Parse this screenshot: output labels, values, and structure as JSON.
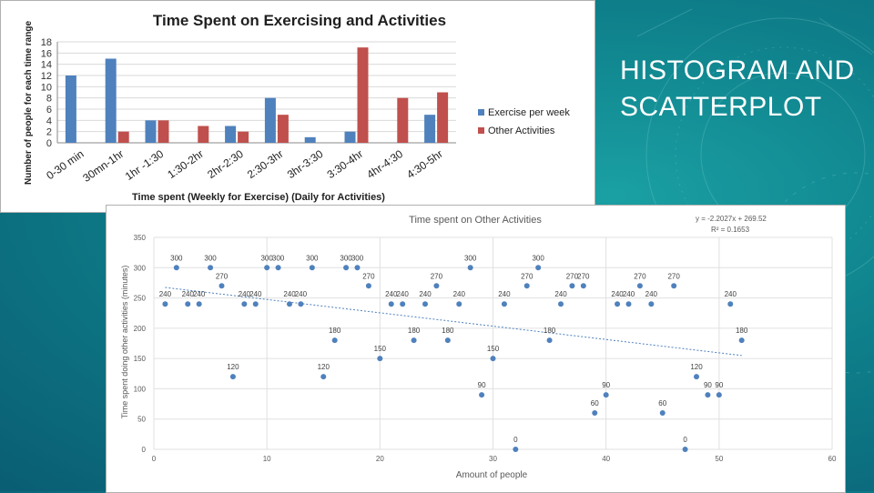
{
  "slide": {
    "title_line1": "HISTOGRAM AND",
    "title_line2": "SCATTERPLOT"
  },
  "chart_data": [
    {
      "type": "bar",
      "title": "Time Spent on Exercising and Activities",
      "xlabel": "Time spent (Weekly for Exercise) (Daily for Activities)",
      "ylabel": "Number of people for each time range",
      "categories": [
        "0-30 min",
        "30mn-1hr",
        "1hr -1:30",
        "1:30-2hr",
        "2hr-2:30",
        "2:30-3hr",
        "3hr-3:30",
        "3:30-4hr",
        "4hr-4:30",
        "4:30-5hr"
      ],
      "series": [
        {
          "name": "Exercise per week",
          "color": "#4f81bd",
          "values": [
            12,
            15,
            4,
            0,
            3,
            8,
            1,
            2,
            0,
            5
          ]
        },
        {
          "name": "Other Activities",
          "color": "#c0504d",
          "values": [
            0,
            2,
            4,
            3,
            2,
            5,
            0,
            17,
            8,
            9
          ]
        }
      ],
      "yticks": [
        0,
        2,
        4,
        6,
        8,
        10,
        12,
        14,
        16,
        18
      ],
      "ylim": [
        0,
        18
      ],
      "grid": true,
      "legend": "right"
    },
    {
      "type": "scatter",
      "title": "Time spent on Other Activities",
      "xlabel": "Amount of people",
      "ylabel": "Time spent doing other activities (minutes)",
      "xlim": [
        0,
        60
      ],
      "ylim": [
        0,
        350
      ],
      "xticks": [
        0,
        10,
        20,
        30,
        40,
        50,
        60
      ],
      "yticks": [
        0,
        50,
        100,
        150,
        200,
        250,
        300,
        350
      ],
      "grid": true,
      "point_color": "#4f81bd",
      "trendline": {
        "equation": "y = -2.2027x + 269.52",
        "r2": "R² = 0.1653",
        "slope": -2.2027,
        "intercept": 269.52,
        "color": "#4f81bd"
      },
      "points": [
        {
          "x": 1,
          "y": 240
        },
        {
          "x": 2,
          "y": 300
        },
        {
          "x": 3,
          "y": 240
        },
        {
          "x": 4,
          "y": 240
        },
        {
          "x": 5,
          "y": 300
        },
        {
          "x": 6,
          "y": 270
        },
        {
          "x": 7,
          "y": 120
        },
        {
          "x": 8,
          "y": 240
        },
        {
          "x": 9,
          "y": 240
        },
        {
          "x": 10,
          "y": 300
        },
        {
          "x": 11,
          "y": 300
        },
        {
          "x": 12,
          "y": 240
        },
        {
          "x": 13,
          "y": 240
        },
        {
          "x": 14,
          "y": 300
        },
        {
          "x": 15,
          "y": 120
        },
        {
          "x": 16,
          "y": 180
        },
        {
          "x": 17,
          "y": 300
        },
        {
          "x": 18,
          "y": 300
        },
        {
          "x": 19,
          "y": 270
        },
        {
          "x": 20,
          "y": 150
        },
        {
          "x": 21,
          "y": 240
        },
        {
          "x": 22,
          "y": 240
        },
        {
          "x": 23,
          "y": 180
        },
        {
          "x": 24,
          "y": 240
        },
        {
          "x": 25,
          "y": 270
        },
        {
          "x": 26,
          "y": 180
        },
        {
          "x": 27,
          "y": 240
        },
        {
          "x": 28,
          "y": 300
        },
        {
          "x": 29,
          "y": 90
        },
        {
          "x": 30,
          "y": 150
        },
        {
          "x": 31,
          "y": 240
        },
        {
          "x": 32,
          "y": 0
        },
        {
          "x": 33,
          "y": 270
        },
        {
          "x": 34,
          "y": 300
        },
        {
          "x": 35,
          "y": 180
        },
        {
          "x": 36,
          "y": 240
        },
        {
          "x": 37,
          "y": 270
        },
        {
          "x": 38,
          "y": 270
        },
        {
          "x": 39,
          "y": 60
        },
        {
          "x": 40,
          "y": 90
        },
        {
          "x": 41,
          "y": 240
        },
        {
          "x": 42,
          "y": 240
        },
        {
          "x": 43,
          "y": 270
        },
        {
          "x": 44,
          "y": 240
        },
        {
          "x": 45,
          "y": 60
        },
        {
          "x": 46,
          "y": 270
        },
        {
          "x": 47,
          "y": 0
        },
        {
          "x": 48,
          "y": 120
        },
        {
          "x": 49,
          "y": 90
        },
        {
          "x": 50,
          "y": 90
        },
        {
          "x": 51,
          "y": 240
        },
        {
          "x": 52,
          "y": 180
        }
      ]
    }
  ]
}
